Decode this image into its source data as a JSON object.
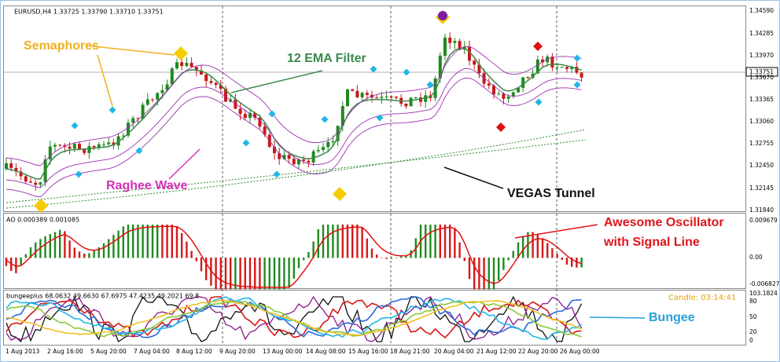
{
  "header": {
    "symbol": "EURUSD,H4 1.33725 1.33790 1.33710 1.33751"
  },
  "price_axis": {
    "labels": [
      "1.34590",
      "1.34285",
      "1.33970",
      "1.33670",
      "1.33365",
      "1.33060",
      "1.32755",
      "1.32450",
      "1.32145",
      "1.31840"
    ],
    "current": "1.33751"
  },
  "annotations": {
    "semaphores": "Semaphores",
    "ema": "12 EMA Filter",
    "raghee": "Raghee Wave",
    "vegas": "VEGAS Tunnel",
    "ao_line1": "Awesome Oscillator",
    "ao_line2": "with Signal Line",
    "bungee": "Bungee"
  },
  "ao_panel": {
    "title": "AO 0.000389 0.001085",
    "labels": [
      "0.009679",
      "0.00",
      "-0.006827"
    ]
  },
  "bungee_panel": {
    "title": "bungeeplus 68.0632 49.6630 67.6975 47.4235 49.2021 69.8",
    "candle": "Candle:  03:14:41",
    "labels": [
      "103.1824",
      "80",
      "50",
      "20",
      "0"
    ]
  },
  "time_axis": {
    "labels": [
      "1 Aug 2013",
      "2 Aug 16:00",
      "5 Aug 20:00",
      "7 Aug 04:00",
      "8 Aug 12:00",
      "9 Aug 20:00",
      "13 Aug 00:00",
      "14 Aug 08:00",
      "15 Aug 16:00",
      "18 Aug 21:00",
      "20 Aug 04:00",
      "21 Aug 12:00",
      "22 Aug 20:00",
      "26 Aug 00:00"
    ]
  }
}
